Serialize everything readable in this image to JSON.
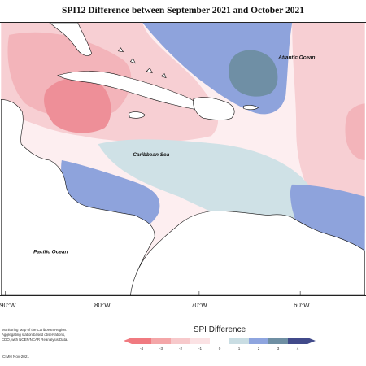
{
  "title": "SPI12 Difference between September 2021 and October 2021",
  "labels": {
    "atlantic": "Atlantic Ocean",
    "caribbean": "Caribbean Sea",
    "pacific": "Pacific Ocean"
  },
  "longitudes": [
    "90°W",
    "80°W",
    "70°W",
    "60°W"
  ],
  "legend": {
    "title": "SPI Difference",
    "ticks": [
      "-4",
      "-3",
      "-2",
      "-1",
      "0",
      "1",
      "2",
      "3",
      "4"
    ],
    "colors": [
      "#f07a80",
      "#f4a6a8",
      "#f7c9cb",
      "#fbe2e4",
      "#ffffff",
      "#c9dde3",
      "#8ea5df",
      "#6f8fa3",
      "#414a8a"
    ]
  },
  "credit": {
    "line1": "Monitoring Map of the Caribbean Region.",
    "line2": "Aggregating station based observations,",
    "line3": "CDO, with NCEP/NCAR Reanalysis Data.",
    "footer": "CIMH Nov-2021"
  },
  "colors": {
    "ocean_neutral": "#fdeef0",
    "pink_light": "#f7cfd3",
    "pink_mid": "#f3b4ba",
    "pink_strong": "#ee8f98",
    "blue_light": "#cfe1e6",
    "blue_mid": "#8ea3dc",
    "blue_dark": "#6f8fa5"
  }
}
